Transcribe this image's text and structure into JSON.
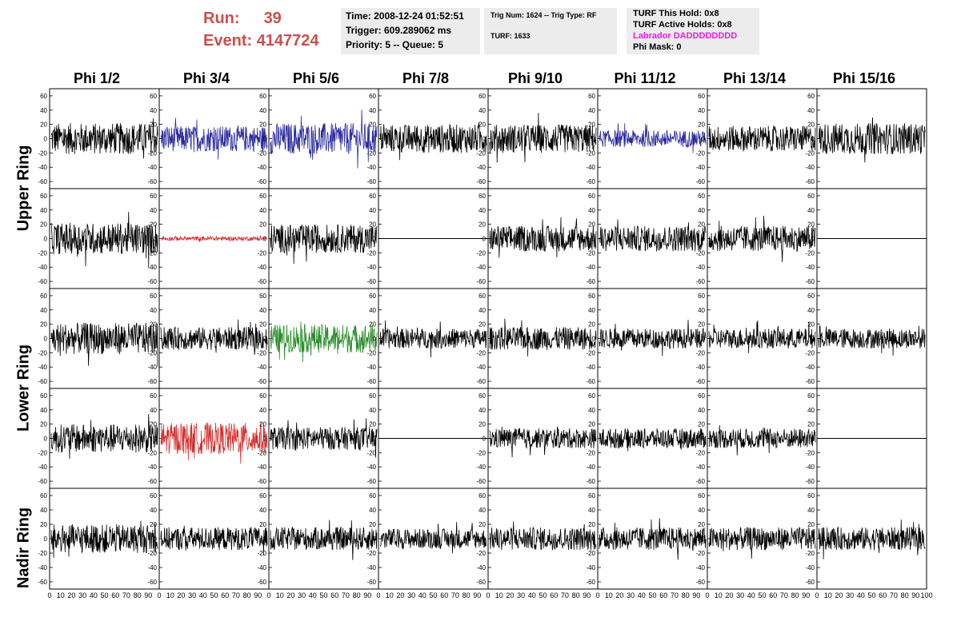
{
  "header": {
    "run_label": "Run:",
    "run_value": "39",
    "event_label": "Event:",
    "event_value": "4147724",
    "time": "Time: 2008-12-24 01:52:51",
    "trigger": "Trigger: 609.289062 ms",
    "priority": "Priority: 5 -- Queue: 5",
    "trig_num": "Trig Num: 1624 -- Trig Type: RF",
    "turf": "TURF: 1633",
    "turf_this_hold": "TURF This Hold: 0x8",
    "turf_active_holds": "TURF Active Holds: 0x8",
    "labrador": "Labrador DADDDDDDDD",
    "phi_mask": "Phi Mask: 0"
  },
  "columns": [
    "Phi 1/2",
    "Phi 3/4",
    "Phi 5/6",
    "Phi 7/8",
    "Phi 9/10",
    "Phi 11/12",
    "Phi 13/14",
    "Phi 15/16"
  ],
  "rows": [
    "Upper Ring",
    "Lower Ring",
    "Nadir Ring"
  ],
  "axes": {
    "y_ticks": [
      "60",
      "40",
      "20",
      "0",
      "-20",
      "-40",
      "-60"
    ],
    "x_ticks": [
      "0",
      "10",
      "20",
      "30",
      "40",
      "50",
      "60",
      "70",
      "80",
      "90",
      "100"
    ],
    "y_range": [
      -70,
      70
    ],
    "x_range": [
      0,
      100
    ]
  },
  "colors": {
    "title_red": "#c8504e",
    "labrador_magenta": "#e61ee6",
    "trace_black": "#000000",
    "trace_blue": "#2b2b9e",
    "trace_red": "#d42a2a",
    "trace_green": "#2a8c2a"
  },
  "chart_data": {
    "type": "line",
    "description_rows": [
      "upper-a",
      "upper-b",
      "lower-a",
      "lower-b",
      "nadir"
    ],
    "panels": [
      [
        {
          "color": "black",
          "amp": 22
        },
        {
          "color": "blue",
          "amp": 18
        },
        {
          "color": "blue",
          "amp": 22
        },
        {
          "color": "black",
          "amp": 20
        },
        {
          "color": "black",
          "amp": 20
        },
        {
          "color": "blue",
          "amp": 12
        },
        {
          "color": "black",
          "amp": 18
        },
        {
          "color": "black",
          "amp": 22
        }
      ],
      [
        {
          "color": "black",
          "amp": 22
        },
        {
          "color": "red",
          "amp": 3
        },
        {
          "color": "black",
          "amp": 20
        },
        {
          "color": "flat",
          "amp": 0
        },
        {
          "color": "black",
          "amp": 18
        },
        {
          "color": "black",
          "amp": 18
        },
        {
          "color": "black",
          "amp": 18
        },
        {
          "color": "flat",
          "amp": 0
        }
      ],
      [
        {
          "color": "black",
          "amp": 22
        },
        {
          "color": "black",
          "amp": 16
        },
        {
          "color": "green",
          "amp": 20
        },
        {
          "color": "black",
          "amp": 14
        },
        {
          "color": "black",
          "amp": 16
        },
        {
          "color": "black",
          "amp": 14
        },
        {
          "color": "black",
          "amp": 14
        },
        {
          "color": "black",
          "amp": 14
        }
      ],
      [
        {
          "color": "black",
          "amp": 20
        },
        {
          "color": "red",
          "amp": 22
        },
        {
          "color": "black",
          "amp": 16
        },
        {
          "color": "flat",
          "amp": 0
        },
        {
          "color": "black",
          "amp": 14
        },
        {
          "color": "black",
          "amp": 14
        },
        {
          "color": "black",
          "amp": 14
        },
        {
          "color": "flat",
          "amp": 0
        }
      ],
      [
        {
          "color": "black",
          "amp": 20
        },
        {
          "color": "black",
          "amp": 16
        },
        {
          "color": "black",
          "amp": 16
        },
        {
          "color": "black",
          "amp": 14
        },
        {
          "color": "black",
          "amp": 16
        },
        {
          "color": "black",
          "amp": 16
        },
        {
          "color": "black",
          "amp": 16
        },
        {
          "color": "black",
          "amp": 16
        }
      ]
    ]
  }
}
